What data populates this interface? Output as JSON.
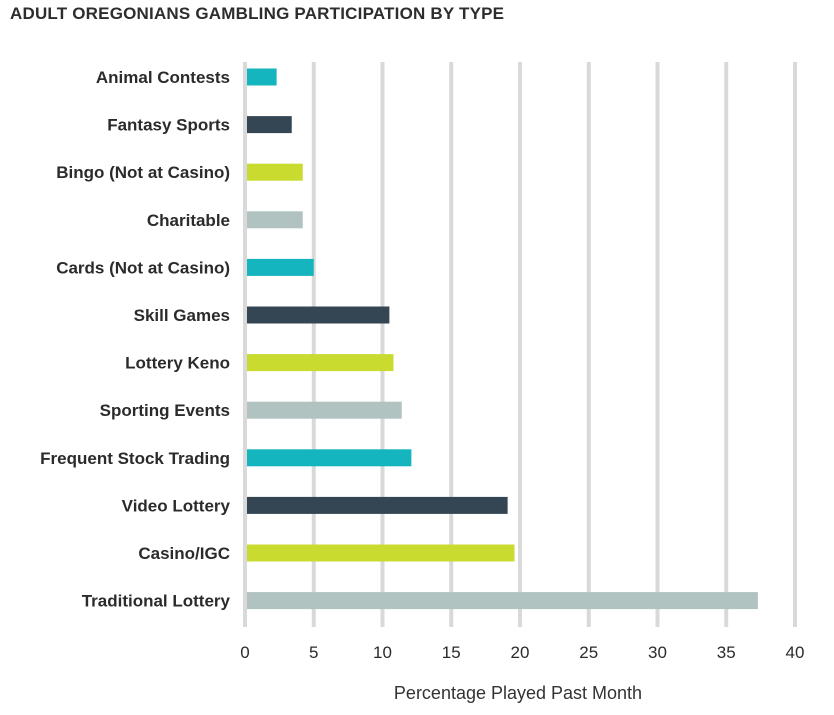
{
  "chart_data": {
    "type": "bar",
    "orientation": "horizontal",
    "title": "ADULT OREGONIANS GAMBLING PARTICIPATION BY TYPE",
    "xlabel": "Percentage Played Past Month",
    "ylabel": "",
    "categories": [
      "Animal Contests",
      "Fantasy Sports",
      "Bingo (Not at Casino)",
      "Charitable",
      "Cards (Not at Casino)",
      "Skill Games",
      "Lottery Keno",
      "Sporting Events",
      "Frequent Stock Trading",
      "Video Lottery",
      "Casino/IGC",
      "Traditional Lottery"
    ],
    "values": [
      2.3,
      3.4,
      4.2,
      4.2,
      5.0,
      10.5,
      10.8,
      11.4,
      12.1,
      19.1,
      19.6,
      37.3
    ],
    "bar_colors": [
      "#14b5be",
      "#344654",
      "#c9db2f",
      "#b1c3c1"
    ],
    "xlim": [
      0,
      40
    ],
    "xticks": [
      0,
      5,
      10,
      15,
      20,
      25,
      30,
      35,
      40
    ],
    "grid": true,
    "gridline_color": "#d9d9d9"
  }
}
